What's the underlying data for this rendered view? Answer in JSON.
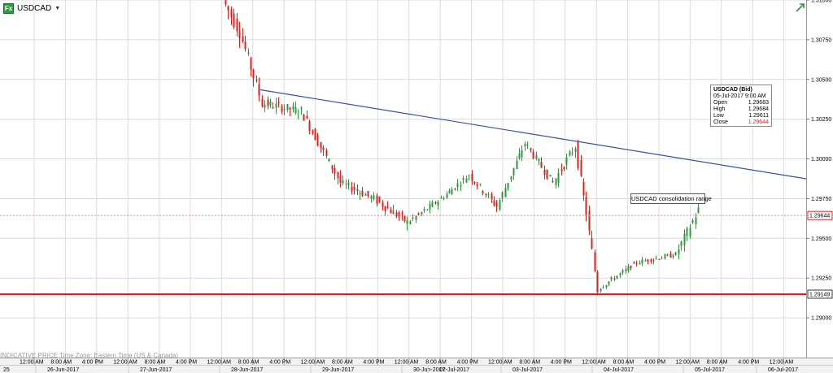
{
  "header": {
    "app_icon": "Fx",
    "symbol": "USDCAD",
    "symbol_caret": "▼",
    "trend_icon": "trend-up-icon"
  },
  "footer_note": "INDICATIVE PRICE   Time Zone: Eastern Time (US & Canada)",
  "info_box": {
    "title": "USDCAD (Bid)",
    "date": "05-Jul-2017 9:00 AM",
    "rows": [
      {
        "label": "Open",
        "value": "1.29683"
      },
      {
        "label": "High",
        "value": "1.29684"
      },
      {
        "label": "Low",
        "value": "1.29611"
      },
      {
        "label": "Close",
        "value": "1.29644"
      }
    ]
  },
  "annotation": "USDCAD consolidation range",
  "colors": {
    "up": "#2e9a3e",
    "down": "#e0201e",
    "trendline": "#3a4fa8",
    "support": "#e0201e",
    "price_line": "#f08a8a"
  },
  "chart_data": {
    "type": "candlestick",
    "symbol": "USDCAD",
    "interval": "hourly",
    "ylim": [
      1.2875,
      1.31
    ],
    "y_ticks": [
      "1.31000",
      "1.30750",
      "1.30500",
      "1.30250",
      "1.30000",
      "1.29750",
      "1.29500",
      "1.29250",
      "1.29000"
    ],
    "price_labels": [
      {
        "value": 1.29644,
        "label": "1.29644",
        "kind": "current"
      },
      {
        "value": 1.29149,
        "label": "1.29149",
        "kind": "support"
      }
    ],
    "time_ticks": [
      "12:00 AM",
      "8:00 AM",
      "4:00 PM",
      "12:00 AM",
      "8:00 AM",
      "4:00 PM",
      "12:00 AM",
      "8:00 AM",
      "4:00 PM",
      "12:00 AM",
      "8:00 AM",
      "4:00 PM",
      "12:00 AM",
      "8:00 AM",
      "4:00 PM",
      "12:00 AM",
      "8:00 AM",
      "4:00 PM",
      "12:00 AM",
      "8:00 AM",
      "4:00 PM",
      "12:00 AM",
      "8:00 AM",
      "4:00 PM",
      "12:00 AM"
    ],
    "date_labels": [
      "25",
      "26-Jun-2017",
      "27-Jun-2017",
      "28-Jun-2017",
      "29-Jun-2017",
      "30-Jun-2017",
      "02-Jul-2017",
      "03-Jul-2017",
      "04-Jul-2017",
      "05-Jul-2017",
      "06-Jul-2017"
    ],
    "trendline": {
      "from": 1.30435,
      "to": 1.29875
    },
    "support_level": 1.29149,
    "segments": [
      {
        "from": 1.31,
        "to": 1.308,
        "n": 6,
        "vol": 0.0009
      },
      {
        "from": 1.308,
        "to": 1.3035,
        "n": 8,
        "vol": 0.0008
      },
      {
        "from": 1.3035,
        "to": 1.303,
        "n": 14,
        "vol": 0.0006
      },
      {
        "from": 1.303,
        "to": 1.2985,
        "n": 14,
        "vol": 0.0006
      },
      {
        "from": 1.2985,
        "to": 1.2975,
        "n": 12,
        "vol": 0.0005
      },
      {
        "from": 1.2975,
        "to": 1.296,
        "n": 12,
        "vol": 0.0006
      },
      {
        "from": 1.296,
        "to": 1.2975,
        "n": 12,
        "vol": 0.0004
      },
      {
        "from": 1.2975,
        "to": 1.299,
        "n": 10,
        "vol": 0.0004
      },
      {
        "from": 1.299,
        "to": 1.297,
        "n": 10,
        "vol": 0.0005
      },
      {
        "from": 1.297,
        "to": 1.301,
        "n": 10,
        "vol": 0.0005
      },
      {
        "from": 1.301,
        "to": 1.2985,
        "n": 10,
        "vol": 0.0005
      },
      {
        "from": 1.2985,
        "to": 1.3008,
        "n": 8,
        "vol": 0.0006
      },
      {
        "from": 1.3008,
        "to": 1.2965,
        "n": 4,
        "vol": 0.0006
      },
      {
        "from": 1.2965,
        "to": 1.2918,
        "n": 4,
        "vol": 0.0007
      },
      {
        "from": 1.2918,
        "to": 1.2935,
        "n": 14,
        "vol": 0.0003
      },
      {
        "from": 1.2935,
        "to": 1.294,
        "n": 14,
        "vol": 0.0003
      },
      {
        "from": 1.294,
        "to": 1.2968,
        "n": 8,
        "vol": 0.0006
      }
    ]
  }
}
